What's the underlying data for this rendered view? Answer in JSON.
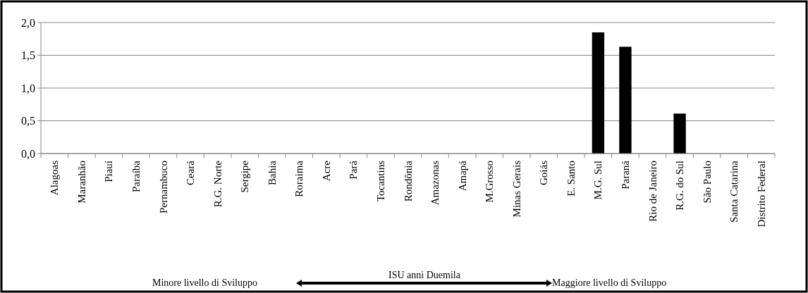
{
  "chart_data": {
    "type": "bar",
    "categories": [
      "Alagoas",
      "Maranhão",
      "Piauí",
      "Paraíba",
      "Pernambuco",
      "Ceará",
      "R.G. Norte",
      "Sergipe",
      "Bahia",
      "Roraima",
      "Acre",
      "Pará",
      "Tocantins",
      "Rondônia",
      "Amazonas",
      "Amapá",
      "M.Grosso",
      "Minas Gerais",
      "Goiás",
      "E. Santo",
      "M.G. Sul",
      "Paraná",
      "Rio de Janeiro",
      "R.G. do Sul",
      "São Paulo",
      "Santa Catarina",
      "Distrito Federal"
    ],
    "values": [
      0,
      0,
      0,
      0,
      0,
      0,
      0,
      0,
      0,
      0,
      0,
      0,
      0,
      0,
      0,
      0,
      0,
      0,
      0,
      0,
      1.85,
      1.63,
      0,
      0.61,
      0,
      0,
      0
    ],
    "color": "#000000",
    "ylim": [
      0,
      2
    ],
    "yticks": [
      {
        "value": 0,
        "label": "0,0"
      },
      {
        "value": 0.5,
        "label": "0,5"
      },
      {
        "value": 1,
        "label": "1,0"
      },
      {
        "value": 1.5,
        "label": "1,5"
      },
      {
        "value": 2,
        "label": "2,0"
      }
    ],
    "grid": "y",
    "annotations": [
      "Minore livello di Sviluppo",
      "ISU anni Duemila",
      "Maggiore livello di Sviluppo"
    ]
  }
}
